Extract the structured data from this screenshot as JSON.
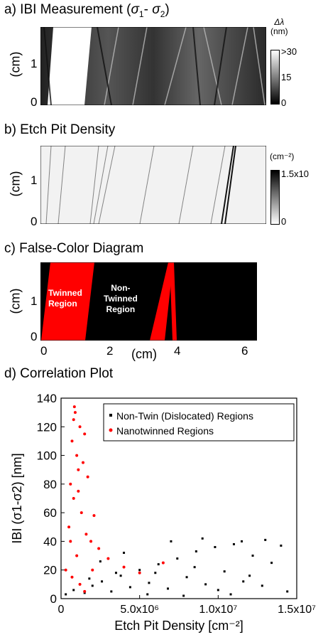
{
  "panel_a": {
    "title": "a) IBI Measurement (",
    "title_sym": "σ",
    "s1": "1",
    "dash": "- ",
    "s2": "2",
    "close": ")",
    "ylabel": "(cm)",
    "yticks": [
      "1",
      "0"
    ],
    "cb_unit_sym": "Δλ",
    "cb_unit": "(nm)",
    "cb_ticks": [
      ">30",
      "15",
      "0"
    ]
  },
  "panel_b": {
    "title": "b) Etch Pit Density",
    "ylabel": "(cm)",
    "yticks": [
      "1",
      "0"
    ],
    "cb_unit": "(cm⁻²)",
    "cb_ticks": [
      "1.5x10",
      "0"
    ]
  },
  "panel_c": {
    "title": "c) False-Color Diagram",
    "ylabel": "(cm)",
    "yticks": [
      "1",
      "0"
    ],
    "xticks": [
      "0",
      "2",
      "4",
      "6"
    ],
    "xlabel": "(cm)",
    "twinned_label": [
      "Twinned",
      "Region"
    ],
    "nontwinned_label": [
      "Non-",
      "Twinned",
      "Region"
    ]
  },
  "panel_d": {
    "title": "d) Correlation Plot"
  },
  "chart_data": {
    "type": "scatter",
    "title": "d) Correlation Plot",
    "xlabel": "Etch Pit Density [cm⁻²]",
    "ylabel": "IBI (σ1-σ2) [nm]",
    "xlim": [
      0,
      15000000
    ],
    "ylim": [
      0,
      140
    ],
    "xticks": [
      0,
      5000000,
      10000000,
      15000000
    ],
    "xtick_labels": [
      "0",
      "5.0x10⁶",
      "1.0x10⁷",
      "1.5x10⁷"
    ],
    "yticks": [
      0,
      20,
      40,
      60,
      80,
      100,
      120,
      140
    ],
    "legend_position": "top-right",
    "series": [
      {
        "name": "Non-Twin (Dislocated) Regions",
        "color": "#000000",
        "marker": "square",
        "points": [
          [
            300000,
            3
          ],
          [
            800000,
            6
          ],
          [
            1500000,
            4
          ],
          [
            2000000,
            9
          ],
          [
            2600000,
            12
          ],
          [
            3200000,
            5
          ],
          [
            3800000,
            16
          ],
          [
            4400000,
            8
          ],
          [
            5000000,
            20
          ],
          [
            5600000,
            11
          ],
          [
            6200000,
            24
          ],
          [
            6800000,
            7
          ],
          [
            7400000,
            28
          ],
          [
            8000000,
            15
          ],
          [
            8600000,
            33
          ],
          [
            9200000,
            10
          ],
          [
            9800000,
            36
          ],
          [
            10400000,
            19
          ],
          [
            11000000,
            38
          ],
          [
            11600000,
            12
          ],
          [
            12200000,
            30
          ],
          [
            12800000,
            9
          ],
          [
            13400000,
            25
          ],
          [
            14000000,
            37
          ],
          [
            14400000,
            5
          ],
          [
            4000000,
            32
          ],
          [
            7000000,
            40
          ],
          [
            9000000,
            42
          ],
          [
            11500000,
            40
          ],
          [
            13000000,
            41
          ],
          [
            6000000,
            18
          ],
          [
            8500000,
            22
          ],
          [
            10000000,
            6
          ],
          [
            12000000,
            16
          ],
          [
            2500000,
            26
          ],
          [
            3500000,
            18
          ],
          [
            1800000,
            14
          ],
          [
            5500000,
            3
          ],
          [
            7800000,
            2
          ],
          [
            10800000,
            3
          ]
        ]
      },
      {
        "name": "Nanotwinned Regions",
        "color": "#ff0000",
        "marker": "circle",
        "points": [
          [
            300000,
            20
          ],
          [
            500000,
            50
          ],
          [
            600000,
            80
          ],
          [
            700000,
            110
          ],
          [
            800000,
            125
          ],
          [
            850000,
            134
          ],
          [
            900000,
            130
          ],
          [
            1000000,
            100
          ],
          [
            1100000,
            75
          ],
          [
            1200000,
            120
          ],
          [
            1300000,
            60
          ],
          [
            1400000,
            95
          ],
          [
            1500000,
            115
          ],
          [
            1600000,
            45
          ],
          [
            1700000,
            85
          ],
          [
            1900000,
            40
          ],
          [
            2100000,
            58
          ],
          [
            2400000,
            35
          ],
          [
            3000000,
            28
          ],
          [
            4000000,
            22
          ],
          [
            5000000,
            18
          ],
          [
            6500000,
            25
          ],
          [
            1000000,
            30
          ],
          [
            1200000,
            10
          ],
          [
            700000,
            15
          ],
          [
            2000000,
            20
          ],
          [
            1500000,
            5
          ],
          [
            800000,
            70
          ],
          [
            1100000,
            90
          ],
          [
            600000,
            40
          ]
        ]
      }
    ]
  }
}
